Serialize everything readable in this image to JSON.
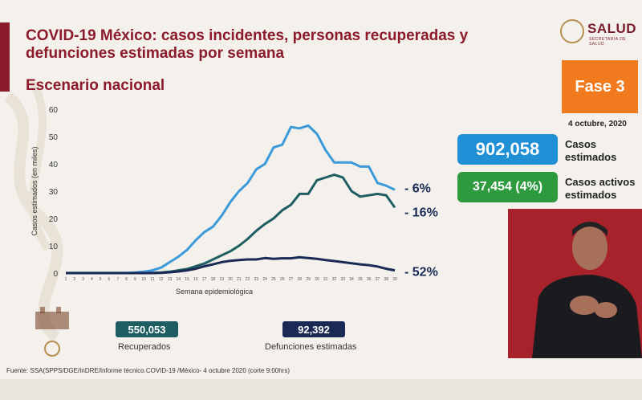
{
  "title": "COVID-19 México: casos incidentes, personas recuperadas y defunciones estimadas por semana",
  "subtitle": "Escenario nacional",
  "logo": {
    "name": "SALUD",
    "sub": "SECRETARÍA DE SALUD"
  },
  "phase": "Fase 3",
  "date": "4 octubre, 2020",
  "stats": {
    "casos_value": "902,058",
    "casos_label": "Casos estimados",
    "activos_value": "37,454 (4%)",
    "activos_label": "Casos activos estimados",
    "recuperados_value": "550,053",
    "recuperados_label": "Recuperados",
    "defunciones_value": "92,392",
    "defunciones_label": "Defunciones estimadas"
  },
  "source": "Fuente: SSA(SPPS/DGE/InDRE/Informe técnico.COVID-19 /México- 4 octubre 2020 (corte 9:00hrs)",
  "colors": {
    "casos": "#3b9ad9",
    "recuperados": "#1e5e63",
    "defunciones": "#1a2a55",
    "brand": "#8b1a2b",
    "phase": "#f07a1d"
  },
  "chart_data": {
    "type": "line",
    "xlabel": "Semana epidemiológica",
    "ylabel": "Casos estimados (en miles)",
    "ylim": [
      0,
      60
    ],
    "yticks": [
      0,
      10,
      20,
      30,
      40,
      50,
      60
    ],
    "x": [
      1,
      2,
      3,
      4,
      5,
      6,
      7,
      8,
      9,
      10,
      11,
      12,
      13,
      14,
      15,
      16,
      17,
      18,
      19,
      20,
      21,
      22,
      23,
      24,
      25,
      26,
      27,
      28,
      29,
      30,
      31,
      32,
      33,
      34,
      35,
      36,
      37,
      38,
      39
    ],
    "grid": false,
    "series": [
      {
        "key": "casos",
        "annotation": "- 6%",
        "values": [
          0.1,
          0.1,
          0.1,
          0.1,
          0.1,
          0.1,
          0.1,
          0.1,
          0.2,
          0.5,
          1,
          2,
          4,
          6,
          8.5,
          12,
          15,
          17,
          21,
          26,
          30,
          33,
          38,
          40,
          46,
          47,
          53.5,
          53,
          54,
          51,
          45,
          40.5,
          40.5,
          40.5,
          39,
          39,
          33,
          32,
          30.5
        ]
      },
      {
        "key": "recuperados",
        "annotation": "- 16%",
        "values": [
          0,
          0,
          0,
          0,
          0,
          0,
          0,
          0,
          0,
          0,
          0.1,
          0.2,
          0.5,
          1,
          1.5,
          2.5,
          3.5,
          5,
          6.5,
          8,
          10,
          12.5,
          15.5,
          18,
          20,
          23,
          25,
          29,
          29,
          34,
          35,
          36,
          35,
          30,
          28,
          28.5,
          29,
          28.5,
          24
        ]
      },
      {
        "key": "defunciones",
        "annotation": "- 52%",
        "values": [
          0,
          0,
          0,
          0,
          0,
          0,
          0,
          0,
          0,
          0,
          0,
          0.1,
          0.3,
          0.6,
          1,
          1.6,
          2.5,
          3.2,
          4,
          4.5,
          4.8,
          5,
          5,
          5.5,
          5.2,
          5.4,
          5.4,
          5.8,
          5.5,
          5.2,
          4.8,
          4.4,
          4,
          3.6,
          3.2,
          2.9,
          2.4,
          1.6,
          1
        ]
      }
    ]
  }
}
